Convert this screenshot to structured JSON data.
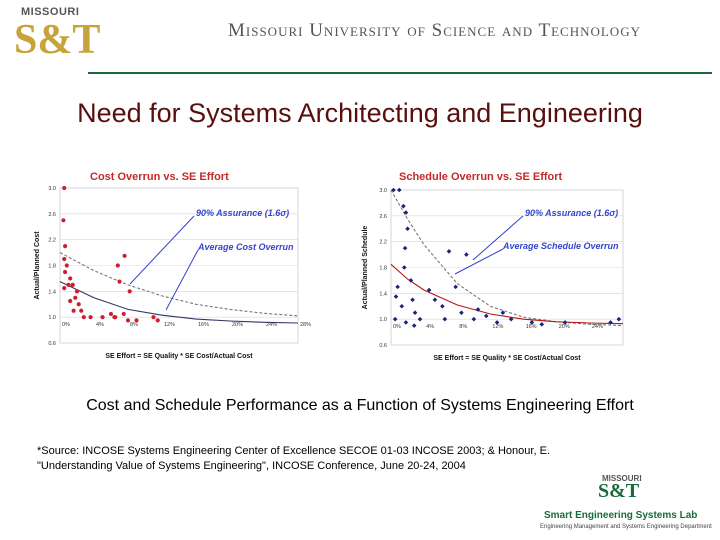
{
  "header": {
    "logo_small": "MISSOURI",
    "logo_big": "S&T",
    "university": "Missouri University of Science and Technology"
  },
  "slide": {
    "title": "Need for Systems Architecting and Engineering",
    "caption": "Cost and Schedule Performance as a Function of Systems Engineering Effort",
    "source_line1": "*Source: INCOSE Systems Engineering Center of Excellence SECOE 01-03 INCOSE 2003; & Honour, E.",
    "source_line2": "\"Understanding Value of Systems Engineering\", INCOSE Conference, June 20-24, 2004"
  },
  "footer_logo": {
    "small": "MISSOURI",
    "big": "S&T",
    "name": "Smart Engineering Systems Lab",
    "dept": "Engineering Management and Systems Engineering Department"
  },
  "colors": {
    "points": "#cc1f2f",
    "diamonds": "#1a237e",
    "annotation": "#3344cc",
    "title_red": "#c42a2a",
    "curve_red": "#b01818",
    "avg_line": "#333366",
    "dashed": "#777777"
  },
  "chart_data": [
    {
      "type": "scatter",
      "title": "Cost Overrun vs. SE Effort",
      "xlabel": "SE Effort = SE Quality * SE Cost/Actual Cost",
      "ylabel": "Actual/Planned Cost",
      "xlim": [
        0,
        28
      ],
      "ylim": [
        0.6,
        3.0
      ],
      "x_tick_labels": [
        "0%",
        "4%",
        "8%",
        "12%",
        "16%",
        "20%",
        "24%",
        "28%"
      ],
      "y_tick_labels": [
        "0.6",
        "1.0",
        "1.4",
        "1.8",
        "2.2",
        "2.6",
        "3.0"
      ],
      "annotations": [
        "90% Assurance (1.6σ)",
        "Average Cost Overrun"
      ],
      "series": [
        {
          "marker": "circle",
          "points": [
            [
              0.5,
              3.0
            ],
            [
              0.4,
              2.5
            ],
            [
              0.6,
              2.1
            ],
            [
              0.5,
              1.9
            ],
            [
              0.8,
              1.8
            ],
            [
              0.6,
              1.7
            ],
            [
              1.2,
              1.6
            ],
            [
              1.0,
              1.5
            ],
            [
              0.5,
              1.45
            ],
            [
              1.5,
              1.5
            ],
            [
              2.0,
              1.4
            ],
            [
              1.8,
              1.3
            ],
            [
              2.2,
              1.2
            ],
            [
              1.6,
              1.1
            ],
            [
              2.5,
              1.1
            ],
            [
              1.2,
              1.25
            ],
            [
              2.8,
              1.0
            ],
            [
              3.6,
              1.0
            ],
            [
              5.0,
              1.0
            ],
            [
              6.8,
              1.8
            ],
            [
              7.6,
              1.95
            ],
            [
              7.0,
              1.55
            ],
            [
              8.2,
              1.4
            ],
            [
              6.5,
              1.0
            ],
            [
              6.0,
              1.05
            ],
            [
              8.0,
              0.95
            ],
            [
              9.0,
              0.95
            ],
            [
              11.0,
              1.0
            ],
            [
              11.5,
              0.95
            ],
            [
              7.5,
              1.05
            ],
            [
              6.4,
              1.0
            ]
          ]
        },
        {
          "name": "90% Assurance",
          "line": "dashed",
          "x": [
            0,
            4,
            8,
            12,
            16,
            20,
            24,
            28
          ],
          "y": [
            2.0,
            1.72,
            1.5,
            1.33,
            1.2,
            1.12,
            1.06,
            1.02
          ]
        },
        {
          "name": "Average Cost Overrun",
          "line": "solid",
          "x": [
            0,
            4,
            8,
            12,
            16,
            20,
            24,
            28
          ],
          "y": [
            1.55,
            1.3,
            1.12,
            1.03,
            0.97,
            0.94,
            0.92,
            0.91
          ]
        }
      ]
    },
    {
      "type": "scatter",
      "title": "Schedule Overrun vs. SE Effort",
      "xlabel": "SE Effort = SE Quality * SE Cost/Actual Cost",
      "ylabel": "Actual/Planned Schedule",
      "xlim": [
        0,
        28
      ],
      "ylim": [
        0.6,
        3.0
      ],
      "x_tick_labels": [
        "0%",
        "4%",
        "8%",
        "12%",
        "16%",
        "20%",
        "24%"
      ],
      "y_tick_labels": [
        "0.6",
        "1.0",
        "1.4",
        "1.8",
        "2.2",
        "2.6",
        "3.0"
      ],
      "annotations": [
        "90% Assurance (1.6σ)",
        "Average Schedule Overrun"
      ],
      "series": [
        {
          "marker": "diamond",
          "points": [
            [
              0.3,
              3.0
            ],
            [
              1.0,
              3.0
            ],
            [
              1.5,
              2.75
            ],
            [
              1.8,
              2.65
            ],
            [
              2.0,
              2.4
            ],
            [
              1.7,
              2.1
            ],
            [
              1.6,
              1.8
            ],
            [
              2.4,
              1.6
            ],
            [
              0.8,
              1.5
            ],
            [
              0.6,
              1.35
            ],
            [
              2.6,
              1.3
            ],
            [
              1.3,
              1.2
            ],
            [
              2.9,
              1.1
            ],
            [
              0.5,
              1.0
            ],
            [
              1.8,
              0.95
            ],
            [
              2.8,
              0.9
            ],
            [
              3.5,
              1.0
            ],
            [
              4.6,
              1.45
            ],
            [
              5.3,
              1.3
            ],
            [
              6.2,
              1.2
            ],
            [
              7.8,
              1.5
            ],
            [
              6.5,
              1.0
            ],
            [
              8.5,
              1.1
            ],
            [
              9.1,
              2.0
            ],
            [
              10.5,
              1.15
            ],
            [
              10.0,
              1.0
            ],
            [
              11.5,
              1.05
            ],
            [
              12.8,
              0.95
            ],
            [
              13.5,
              1.1
            ],
            [
              14.5,
              1.0
            ],
            [
              17.0,
              0.95
            ],
            [
              18.2,
              0.92
            ],
            [
              21.0,
              0.95
            ],
            [
              26.5,
              0.95
            ],
            [
              27.5,
              1.0
            ],
            [
              7.0,
              2.05
            ]
          ]
        },
        {
          "name": "90% Assurance",
          "line": "dashed",
          "x": [
            0,
            2,
            4,
            8,
            12,
            16,
            20,
            24,
            28
          ],
          "y": [
            3.0,
            2.55,
            2.15,
            1.55,
            1.2,
            1.03,
            0.96,
            0.92,
            0.9
          ]
        },
        {
          "name": "Average Schedule Overrun",
          "line": "solid",
          "x": [
            0,
            2,
            4,
            8,
            12,
            16,
            20,
            24,
            28
          ],
          "y": [
            1.85,
            1.62,
            1.45,
            1.22,
            1.08,
            1.0,
            0.96,
            0.94,
            0.93
          ]
        }
      ]
    }
  ]
}
